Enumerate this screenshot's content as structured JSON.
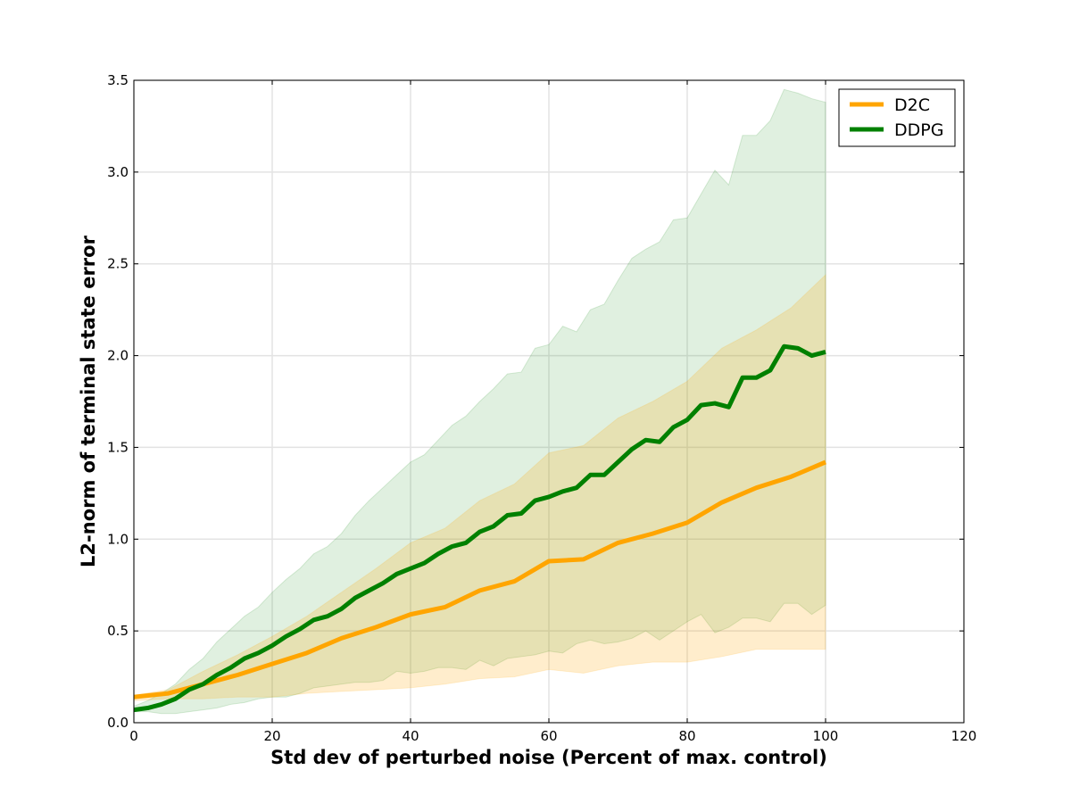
{
  "chart_data": {
    "type": "line",
    "title": "",
    "xlabel": "Std dev of perturbed noise (Percent of max. control)",
    "ylabel": "L2-norm of terminal state error",
    "xlim": [
      0,
      120
    ],
    "ylim": [
      0,
      3.5
    ],
    "xticks": [
      0,
      20,
      40,
      60,
      80,
      100,
      120
    ],
    "yticks": [
      0.0,
      0.5,
      1.0,
      1.5,
      2.0,
      2.5,
      3.0,
      3.5
    ],
    "xtick_labels": [
      "0",
      "20",
      "40",
      "60",
      "80",
      "100",
      "120"
    ],
    "ytick_labels": [
      "0.0",
      "0.5",
      "1.0",
      "1.5",
      "2.0",
      "2.5",
      "3.0",
      "3.5"
    ],
    "grid": true,
    "legend": "top-right",
    "series": [
      {
        "name": "D2C",
        "color": "#FFA500",
        "band_color": "#FFE8B8",
        "x": [
          0,
          5,
          10,
          15,
          20,
          25,
          30,
          35,
          40,
          45,
          50,
          55,
          60,
          65,
          70,
          75,
          80,
          85,
          90,
          95,
          100
        ],
        "y": [
          0.14,
          0.16,
          0.21,
          0.26,
          0.32,
          0.38,
          0.46,
          0.52,
          0.59,
          0.63,
          0.72,
          0.77,
          0.88,
          0.89,
          0.98,
          1.03,
          1.09,
          1.2,
          1.28,
          1.34,
          1.42
        ],
        "lower": [
          0.12,
          0.13,
          0.13,
          0.14,
          0.14,
          0.16,
          0.17,
          0.18,
          0.19,
          0.21,
          0.24,
          0.25,
          0.29,
          0.27,
          0.31,
          0.33,
          0.33,
          0.36,
          0.4,
          0.4,
          0.4
        ],
        "upper": [
          0.15,
          0.18,
          0.28,
          0.37,
          0.47,
          0.58,
          0.71,
          0.84,
          0.98,
          1.06,
          1.21,
          1.3,
          1.47,
          1.51,
          1.66,
          1.75,
          1.86,
          2.04,
          2.14,
          2.26,
          2.44
        ]
      },
      {
        "name": "DDPG",
        "color": "#008000",
        "band_color": "#DFEEDF",
        "x": [
          0,
          2,
          4,
          6,
          8,
          10,
          12,
          14,
          16,
          18,
          20,
          22,
          24,
          26,
          28,
          30,
          32,
          34,
          36,
          38,
          40,
          42,
          44,
          46,
          48,
          50,
          52,
          54,
          56,
          58,
          60,
          62,
          64,
          66,
          68,
          70,
          72,
          74,
          76,
          78,
          80,
          82,
          84,
          86,
          88,
          90,
          92,
          94,
          96,
          98,
          100
        ],
        "y": [
          0.07,
          0.08,
          0.1,
          0.13,
          0.18,
          0.21,
          0.26,
          0.3,
          0.35,
          0.38,
          0.42,
          0.47,
          0.51,
          0.56,
          0.58,
          0.62,
          0.68,
          0.72,
          0.76,
          0.81,
          0.84,
          0.87,
          0.92,
          0.96,
          0.98,
          1.04,
          1.07,
          1.13,
          1.14,
          1.21,
          1.23,
          1.26,
          1.28,
          1.35,
          1.35,
          1.42,
          1.49,
          1.54,
          1.53,
          1.61,
          1.65,
          1.73,
          1.74,
          1.72,
          1.88,
          1.88,
          1.92,
          2.05,
          2.04,
          2.0,
          2.02
        ],
        "lower": [
          0.06,
          0.06,
          0.05,
          0.05,
          0.06,
          0.07,
          0.08,
          0.1,
          0.11,
          0.13,
          0.14,
          0.14,
          0.16,
          0.19,
          0.2,
          0.21,
          0.22,
          0.22,
          0.23,
          0.28,
          0.27,
          0.28,
          0.3,
          0.3,
          0.29,
          0.34,
          0.31,
          0.35,
          0.36,
          0.37,
          0.39,
          0.38,
          0.43,
          0.45,
          0.43,
          0.44,
          0.46,
          0.5,
          0.45,
          0.5,
          0.55,
          0.59,
          0.49,
          0.52,
          0.57,
          0.57,
          0.55,
          0.65,
          0.65,
          0.59,
          0.64
        ],
        "upper": [
          0.09,
          0.12,
          0.16,
          0.21,
          0.29,
          0.35,
          0.44,
          0.51,
          0.58,
          0.63,
          0.71,
          0.78,
          0.84,
          0.92,
          0.96,
          1.03,
          1.13,
          1.21,
          1.28,
          1.35,
          1.42,
          1.46,
          1.54,
          1.62,
          1.67,
          1.75,
          1.82,
          1.9,
          1.91,
          2.04,
          2.06,
          2.16,
          2.13,
          2.25,
          2.28,
          2.41,
          2.53,
          2.58,
          2.62,
          2.74,
          2.75,
          2.88,
          3.01,
          2.93,
          3.2,
          3.2,
          3.28,
          3.45,
          3.43,
          3.4,
          3.38
        ]
      }
    ]
  }
}
